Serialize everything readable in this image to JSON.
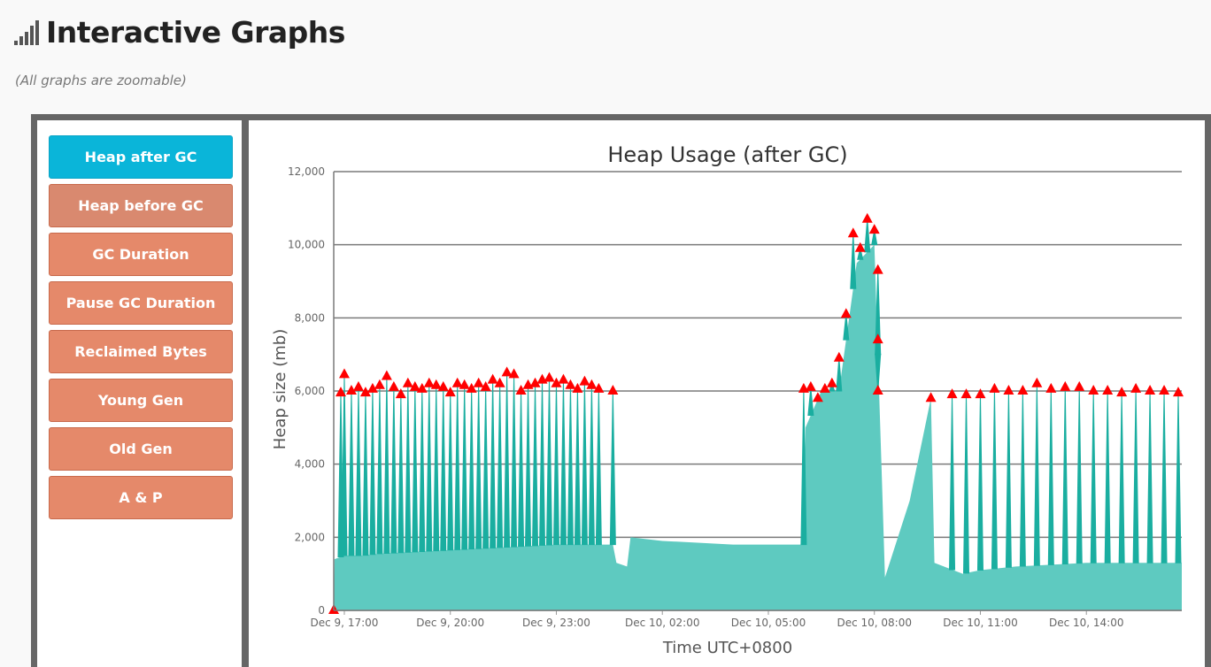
{
  "header": {
    "title": "Interactive Graphs",
    "subtitle": "(All graphs are zoomable)",
    "icon": "signal-bars-icon"
  },
  "nav": {
    "items": [
      {
        "label": "Heap after GC",
        "active": true
      },
      {
        "label": "Heap before GC",
        "active": false
      },
      {
        "label": "GC Duration",
        "active": false
      },
      {
        "label": "Pause GC Duration",
        "active": false
      },
      {
        "label": "Reclaimed Bytes",
        "active": false
      },
      {
        "label": "Young Gen",
        "active": false
      },
      {
        "label": "Old Gen",
        "active": false
      },
      {
        "label": "A & P",
        "active": false
      }
    ]
  },
  "colors": {
    "active": "#0ab5d9",
    "button": "#e5896a",
    "fill": "#5ecac0",
    "line": "#1aaea0",
    "marker": "#ff0000"
  },
  "chart_data": {
    "type": "area",
    "title": "Heap Usage (after GC)",
    "xlabel": "Time UTC+0800",
    "ylabel": "Heap size (mb)",
    "ylim": [
      0,
      12000
    ],
    "y_ticks": [
      "0",
      "2,000",
      "4,000",
      "6,000",
      "8,000",
      "10,000",
      "12,000"
    ],
    "x_ticks": [
      "Dec 9, 17:00",
      "Dec 9, 20:00",
      "Dec 9, 23:00",
      "Dec 10, 02:00",
      "Dec 10, 05:00",
      "Dec 10, 08:00",
      "Dec 10, 11:00",
      "Dec 10, 14:00"
    ],
    "x_tick_hours": [
      0,
      3,
      6,
      9,
      12,
      15,
      18,
      21
    ],
    "xlim_hours": [
      -0.3,
      23.7
    ],
    "grid": true,
    "series": [
      {
        "points_hours_mb": [
          [
            -0.3,
            0
          ],
          [
            -0.28,
            1400
          ],
          [
            0,
            1500
          ],
          [
            0.5,
            1500
          ],
          [
            1,
            1550
          ],
          [
            2,
            1600
          ],
          [
            3,
            1650
          ],
          [
            4,
            1700
          ],
          [
            5,
            1750
          ],
          [
            6,
            1800
          ],
          [
            7,
            1800
          ],
          [
            7.6,
            1800
          ],
          [
            7.7,
            1300
          ],
          [
            8.0,
            1200
          ],
          [
            8.1,
            2000
          ],
          [
            9,
            1900
          ],
          [
            10,
            1850
          ],
          [
            11,
            1800
          ],
          [
            12,
            1800
          ],
          [
            13,
            1800
          ],
          [
            13.05,
            5000
          ],
          [
            13.5,
            6000
          ],
          [
            14,
            6000
          ],
          [
            14.5,
            9500
          ],
          [
            15,
            10000
          ],
          [
            15.2,
            4000
          ],
          [
            15.3,
            900
          ],
          [
            16,
            3000
          ],
          [
            16.6,
            5800
          ],
          [
            16.7,
            1300
          ],
          [
            17.5,
            1000
          ],
          [
            18,
            1100
          ],
          [
            19,
            1200
          ],
          [
            20,
            1250
          ],
          [
            21,
            1300
          ],
          [
            22,
            1300
          ],
          [
            23,
            1300
          ],
          [
            23.7,
            1300
          ]
        ],
        "peaks_hours_mb": [
          [
            -0.3,
            0
          ],
          [
            -0.1,
            5950
          ],
          [
            0.0,
            6450
          ],
          [
            0.2,
            6000
          ],
          [
            0.4,
            6100
          ],
          [
            0.6,
            5950
          ],
          [
            0.8,
            6050
          ],
          [
            1.0,
            6150
          ],
          [
            1.2,
            6400
          ],
          [
            1.4,
            6100
          ],
          [
            1.6,
            5900
          ],
          [
            1.8,
            6200
          ],
          [
            2.0,
            6100
          ],
          [
            2.2,
            6050
          ],
          [
            2.4,
            6200
          ],
          [
            2.6,
            6150
          ],
          [
            2.8,
            6100
          ],
          [
            3.0,
            5950
          ],
          [
            3.2,
            6200
          ],
          [
            3.4,
            6150
          ],
          [
            3.6,
            6050
          ],
          [
            3.8,
            6200
          ],
          [
            4.0,
            6100
          ],
          [
            4.2,
            6300
          ],
          [
            4.4,
            6200
          ],
          [
            4.6,
            6500
          ],
          [
            4.8,
            6450
          ],
          [
            5.0,
            6000
          ],
          [
            5.2,
            6150
          ],
          [
            5.4,
            6200
          ],
          [
            5.6,
            6300
          ],
          [
            5.8,
            6350
          ],
          [
            6.0,
            6200
          ],
          [
            6.2,
            6300
          ],
          [
            6.4,
            6150
          ],
          [
            6.6,
            6050
          ],
          [
            6.8,
            6250
          ],
          [
            7.0,
            6150
          ],
          [
            7.2,
            6050
          ],
          [
            7.6,
            6000
          ],
          [
            13.0,
            6050
          ],
          [
            13.2,
            6100
          ],
          [
            13.4,
            5800
          ],
          [
            13.6,
            6050
          ],
          [
            13.8,
            6200
          ],
          [
            14.0,
            6900
          ],
          [
            14.2,
            8100
          ],
          [
            14.4,
            10300
          ],
          [
            14.6,
            9900
          ],
          [
            14.8,
            10700
          ],
          [
            15.0,
            10400
          ],
          [
            15.1,
            9300
          ],
          [
            15.1,
            7400
          ],
          [
            15.1,
            6000
          ],
          [
            16.6,
            5800
          ],
          [
            17.2,
            5900
          ],
          [
            17.6,
            5900
          ],
          [
            18.0,
            5900
          ],
          [
            18.4,
            6050
          ],
          [
            18.8,
            6000
          ],
          [
            19.2,
            6000
          ],
          [
            19.6,
            6200
          ],
          [
            20.0,
            6050
          ],
          [
            20.4,
            6100
          ],
          [
            20.8,
            6100
          ],
          [
            21.2,
            6000
          ],
          [
            21.6,
            6000
          ],
          [
            22.0,
            5950
          ],
          [
            22.4,
            6050
          ],
          [
            22.8,
            6000
          ],
          [
            23.2,
            6000
          ],
          [
            23.6,
            5950
          ]
        ]
      }
    ]
  }
}
